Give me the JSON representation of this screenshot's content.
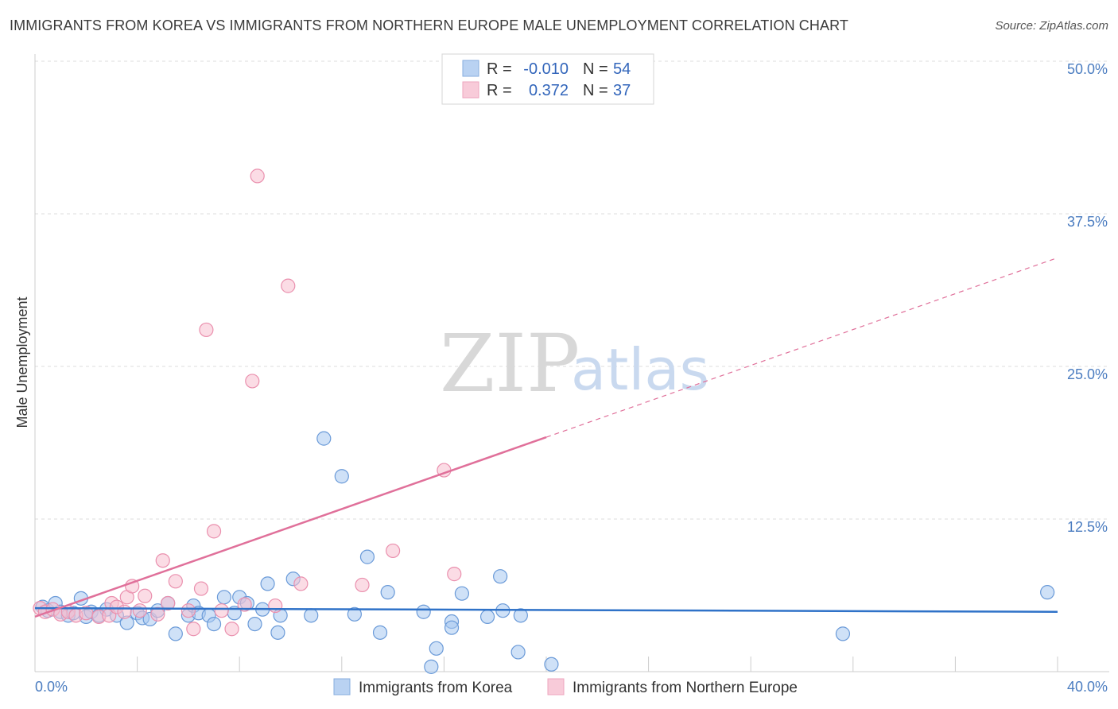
{
  "title": "IMMIGRANTS FROM KOREA VS IMMIGRANTS FROM NORTHERN EUROPE MALE UNEMPLOYMENT CORRELATION CHART",
  "source": "Source: ZipAtlas.com",
  "watermark": {
    "zip": "ZIP",
    "atlas": "atlas"
  },
  "colors": {
    "korea_fill": "#a8c8f0",
    "korea_stroke": "#6a9ad8",
    "korea_line": "#2f72c8",
    "ne_fill": "#f7bfd0",
    "ne_stroke": "#ea90ae",
    "ne_line": "#e0709a",
    "grid": "#dddddd",
    "tick_text": "#4a7cc0"
  },
  "legend": {
    "rows": [
      {
        "r_label": "R =",
        "r_value": "-0.010",
        "n_label": "N =",
        "n_value": "54"
      },
      {
        "r_label": "R =",
        "r_value": "0.372",
        "n_label": "N =",
        "n_value": "37"
      }
    ]
  },
  "chart_data": {
    "type": "scatter",
    "title": "IMMIGRANTS FROM KOREA VS IMMIGRANTS FROM NORTHERN EUROPE MALE UNEMPLOYMENT CORRELATION CHART",
    "xlabel": "",
    "ylabel": "Male Unemployment",
    "xlim": [
      0,
      40
    ],
    "ylim": [
      0,
      50
    ],
    "x_tick_labels": [
      "0.0%",
      "40.0%"
    ],
    "y_ticks": [
      12.5,
      25.0,
      37.5,
      50.0
    ],
    "y_tick_labels": [
      "12.5%",
      "25.0%",
      "37.5%",
      "50.0%"
    ],
    "grid": true,
    "series": [
      {
        "name": "Immigrants from Korea",
        "r": -0.01,
        "n": 54,
        "trend": {
          "x0": 0,
          "y0": 5.2,
          "x1": 40,
          "y1": 4.9,
          "dashed_from": 40
        },
        "points": [
          [
            0.3,
            5.3
          ],
          [
            0.5,
            5.0
          ],
          [
            0.8,
            5.6
          ],
          [
            1.0,
            4.9
          ],
          [
            1.3,
            4.6
          ],
          [
            1.5,
            4.8
          ],
          [
            1.8,
            6.0
          ],
          [
            2.0,
            4.5
          ],
          [
            2.2,
            4.9
          ],
          [
            2.5,
            4.6
          ],
          [
            2.8,
            5.1
          ],
          [
            3.2,
            4.6
          ],
          [
            3.6,
            4.0
          ],
          [
            4.0,
            4.8
          ],
          [
            4.2,
            4.4
          ],
          [
            4.5,
            4.3
          ],
          [
            4.8,
            5.0
          ],
          [
            5.2,
            5.6
          ],
          [
            5.5,
            3.1
          ],
          [
            6.0,
            4.6
          ],
          [
            6.2,
            5.4
          ],
          [
            6.4,
            4.8
          ],
          [
            6.8,
            4.6
          ],
          [
            7.0,
            3.9
          ],
          [
            7.4,
            6.1
          ],
          [
            7.8,
            4.8
          ],
          [
            8.0,
            6.1
          ],
          [
            8.3,
            5.6
          ],
          [
            8.6,
            3.9
          ],
          [
            8.9,
            5.1
          ],
          [
            9.1,
            7.2
          ],
          [
            9.5,
            3.2
          ],
          [
            9.6,
            4.6
          ],
          [
            10.1,
            7.6
          ],
          [
            10.8,
            4.6
          ],
          [
            11.3,
            19.1
          ],
          [
            12.0,
            16.0
          ],
          [
            12.5,
            4.7
          ],
          [
            13.0,
            9.4
          ],
          [
            13.5,
            3.2
          ],
          [
            13.8,
            6.5
          ],
          [
            15.2,
            4.9
          ],
          [
            15.7,
            1.9
          ],
          [
            15.5,
            0.4
          ],
          [
            16.3,
            4.1
          ],
          [
            16.3,
            3.6
          ],
          [
            16.7,
            6.4
          ],
          [
            17.7,
            4.5
          ],
          [
            18.2,
            7.8
          ],
          [
            18.3,
            5.0
          ],
          [
            18.9,
            1.6
          ],
          [
            19.0,
            4.6
          ],
          [
            20.2,
            0.6
          ],
          [
            31.6,
            3.1
          ],
          [
            39.6,
            6.5
          ]
        ]
      },
      {
        "name": "Immigrants from Northern Europe",
        "r": 0.372,
        "n": 37,
        "trend": {
          "x0": 0,
          "y0": 4.5,
          "x1": 20.0,
          "y1": 19.2,
          "dashed_to": 40,
          "dashed_y": 33.9
        },
        "points": [
          [
            0.2,
            5.2
          ],
          [
            0.4,
            4.9
          ],
          [
            0.7,
            5.1
          ],
          [
            1.0,
            4.7
          ],
          [
            1.3,
            4.9
          ],
          [
            1.6,
            4.6
          ],
          [
            2.0,
            4.8
          ],
          [
            2.5,
            4.5
          ],
          [
            2.9,
            4.6
          ],
          [
            3.0,
            5.6
          ],
          [
            3.2,
            5.3
          ],
          [
            3.5,
            4.9
          ],
          [
            3.6,
            6.1
          ],
          [
            3.8,
            7.0
          ],
          [
            4.1,
            5.0
          ],
          [
            4.3,
            6.2
          ],
          [
            4.8,
            4.7
          ],
          [
            5.0,
            9.1
          ],
          [
            5.2,
            5.6
          ],
          [
            5.5,
            7.4
          ],
          [
            6.0,
            5.0
          ],
          [
            6.2,
            3.5
          ],
          [
            6.5,
            6.8
          ],
          [
            6.7,
            28.0
          ],
          [
            7.0,
            11.5
          ],
          [
            7.3,
            5.0
          ],
          [
            7.7,
            3.5
          ],
          [
            8.2,
            5.5
          ],
          [
            8.5,
            23.8
          ],
          [
            8.7,
            40.6
          ],
          [
            9.4,
            5.4
          ],
          [
            9.9,
            31.6
          ],
          [
            10.4,
            7.2
          ],
          [
            12.8,
            7.1
          ],
          [
            14.0,
            9.9
          ],
          [
            16.0,
            16.5
          ],
          [
            16.4,
            8.0
          ]
        ]
      }
    ]
  },
  "bottom_legend": [
    {
      "label": "Immigrants from Korea"
    },
    {
      "label": "Immigrants from Northern Europe"
    }
  ]
}
